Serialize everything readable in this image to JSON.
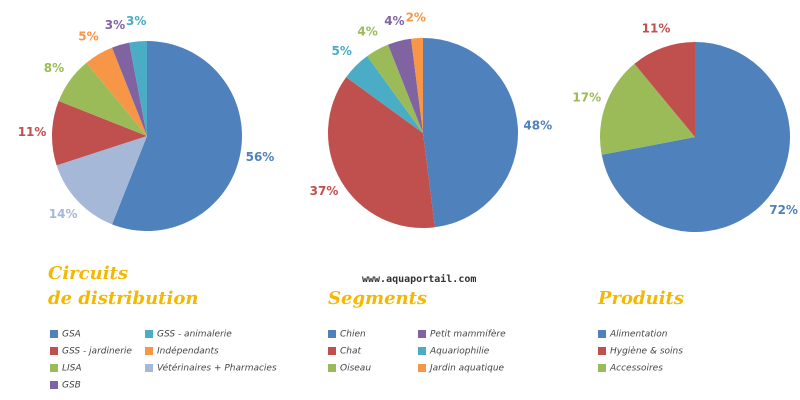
{
  "watermark": "www.aquaportail.com",
  "chart_data": [
    {
      "type": "pie",
      "title": "Circuits de distribution",
      "categories": [
        "GSA",
        "Vétérinaires + Pharmacies",
        "GSS - jardinerie",
        "LISA",
        "Indépendants",
        "GSB",
        "GSS - animalerie"
      ],
      "values": [
        56,
        14,
        11,
        8,
        5,
        3,
        3
      ],
      "value_labels": [
        "56%",
        "14%",
        "11%",
        "8%",
        "5%",
        "3%",
        "3%"
      ],
      "colors": [
        "#4f81bd",
        "#a5b8d8",
        "#c0504d",
        "#9bbb59",
        "#f79646",
        "#8064a2",
        "#4bacc6"
      ]
    },
    {
      "type": "pie",
      "title": "Segments",
      "categories": [
        "Chien",
        "Chat",
        "Aquariophilie",
        "Oiseau",
        "Petit mammifère",
        "Jardin aquatique"
      ],
      "values": [
        48,
        37,
        5,
        4,
        4,
        2
      ],
      "value_labels": [
        "48%",
        "37%",
        "5%",
        "4%",
        "4%",
        "2%"
      ],
      "colors": [
        "#4f81bd",
        "#c0504d",
        "#4bacc6",
        "#9bbb59",
        "#8064a2",
        "#f79646"
      ]
    },
    {
      "type": "pie",
      "title": "Produits",
      "categories": [
        "Alimentation",
        "Accessoires",
        "Hygiène & soins"
      ],
      "values": [
        72,
        17,
        11
      ],
      "value_labels": [
        "72%",
        "17%",
        "11%"
      ],
      "colors": [
        "#4f81bd",
        "#9bbb59",
        "#c0504d"
      ]
    }
  ]
}
